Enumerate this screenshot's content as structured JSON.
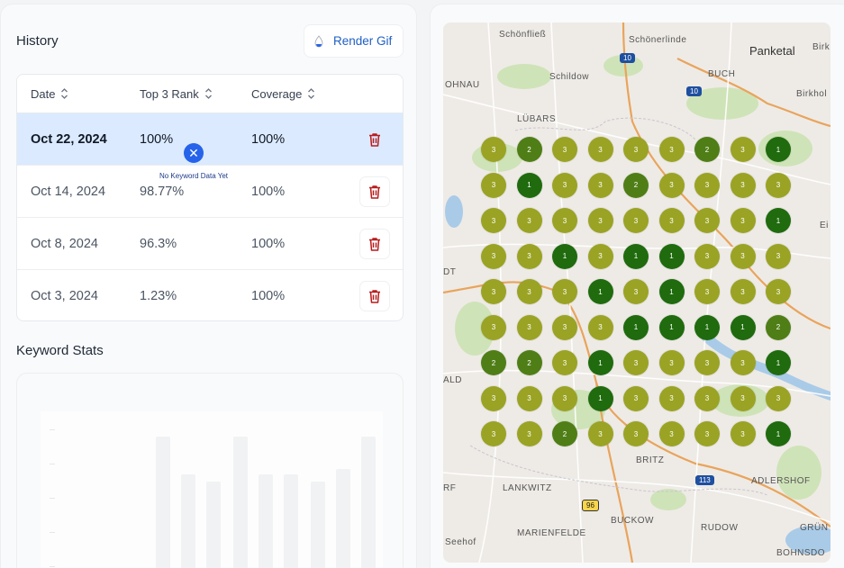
{
  "history": {
    "title": "History",
    "render_button": "Render Gif",
    "columns": [
      "Date",
      "Top 3 Rank",
      "Coverage"
    ],
    "rows": [
      {
        "date": "Oct 22, 2024",
        "top3": "100%",
        "coverage": "100%"
      },
      {
        "date": "Oct 14, 2024",
        "top3": "98.77%",
        "coverage": "100%"
      },
      {
        "date": "Oct 8, 2024",
        "top3": "96.3%",
        "coverage": "100%"
      },
      {
        "date": "Oct 3, 2024",
        "top3": "1.23%",
        "coverage": "100%"
      }
    ]
  },
  "keyword_stats": {
    "title": "Keyword Stats",
    "empty_message": "No Keyword Data Yet",
    "empty_icon": "close-icon"
  },
  "map": {
    "places": [
      "Schönfließ",
      "Schönerlinde",
      "Panketal",
      "Birk",
      "Schildow",
      "BUCH",
      "OHNAU",
      "Birkhol",
      "LÜBARS",
      "DT",
      "ALD",
      "Ei",
      "BRITZ",
      "LANKWITZ",
      "ADLERSHOF",
      "RF",
      "BUCKOW",
      "RUDOW",
      "GRÜN",
      "Seehof",
      "MARIENFELDE",
      "BOHNSDO"
    ],
    "road_shields": [
      "10",
      "10",
      "113",
      "96"
    ],
    "rank_colors": {
      "1": "#1f6b0e",
      "2": "#4f7e16",
      "3": "#9aa324"
    },
    "grid": [
      [
        3,
        2,
        3,
        3,
        3,
        3,
        2,
        3,
        1
      ],
      [
        3,
        1,
        3,
        3,
        2,
        3,
        3,
        3,
        3
      ],
      [
        3,
        3,
        3,
        3,
        3,
        3,
        3,
        3,
        1
      ],
      [
        3,
        3,
        1,
        3,
        1,
        1,
        3,
        3,
        3
      ],
      [
        3,
        3,
        3,
        1,
        3,
        1,
        3,
        3,
        3
      ],
      [
        3,
        3,
        3,
        3,
        1,
        1,
        1,
        1,
        2
      ],
      [
        2,
        2,
        3,
        1,
        3,
        3,
        3,
        3,
        1
      ],
      [
        3,
        3,
        3,
        1,
        3,
        3,
        3,
        3,
        3
      ],
      [
        3,
        3,
        2,
        3,
        3,
        3,
        3,
        3,
        1
      ]
    ]
  }
}
